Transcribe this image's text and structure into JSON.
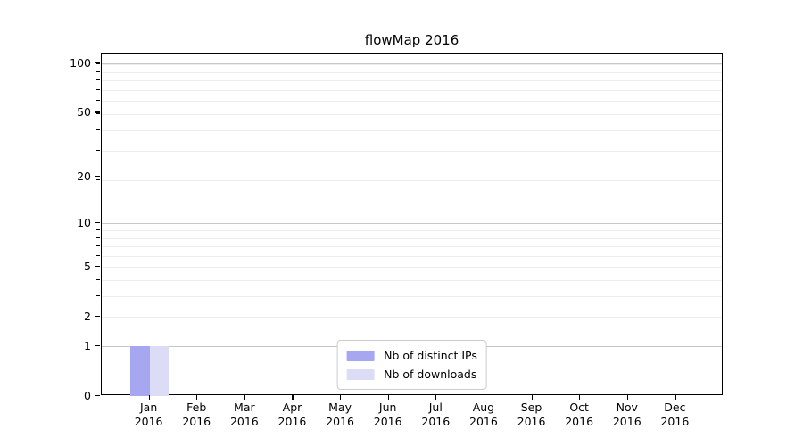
{
  "chart_data": {
    "type": "bar",
    "title": "flowMap 2016",
    "categories": [
      "Jan 2016",
      "Feb 2016",
      "Mar 2016",
      "Apr 2016",
      "May 2016",
      "Jun 2016",
      "Jul 2016",
      "Aug 2016",
      "Sep 2016",
      "Oct 2016",
      "Nov 2016",
      "Dec 2016"
    ],
    "x_tick_months": [
      "Jan",
      "Feb",
      "Mar",
      "Apr",
      "May",
      "Jun",
      "Jul",
      "Aug",
      "Sep",
      "Oct",
      "Nov",
      "Dec"
    ],
    "x_tick_year": "2016",
    "series": [
      {
        "name": "Nb of distinct IPs",
        "color": "#a7a7f1",
        "values": [
          1,
          0,
          0,
          0,
          0,
          0,
          0,
          0,
          0,
          0,
          0,
          0
        ]
      },
      {
        "name": "Nb of downloads",
        "color": "#dcdcf7",
        "values": [
          1,
          0,
          0,
          0,
          0,
          0,
          0,
          0,
          0,
          0,
          0,
          0
        ]
      }
    ],
    "yscale": "log10(1+value)",
    "ylim": [
      0,
      115
    ],
    "yticks": [
      0,
      1,
      2,
      5,
      10,
      20,
      50,
      100
    ],
    "major_gridlines": [
      1,
      10,
      100
    ],
    "minor_gridlines": [
      2,
      3,
      4,
      5,
      6,
      7,
      8,
      9,
      19,
      29,
      39,
      49,
      59,
      69,
      79,
      89,
      99
    ],
    "grid_on": true,
    "legend_position": "lower center",
    "colors": {
      "grid_major": "#c6c6c6",
      "grid_minor": "#ededed",
      "axis": "#000000",
      "background": "#ffffff"
    }
  }
}
